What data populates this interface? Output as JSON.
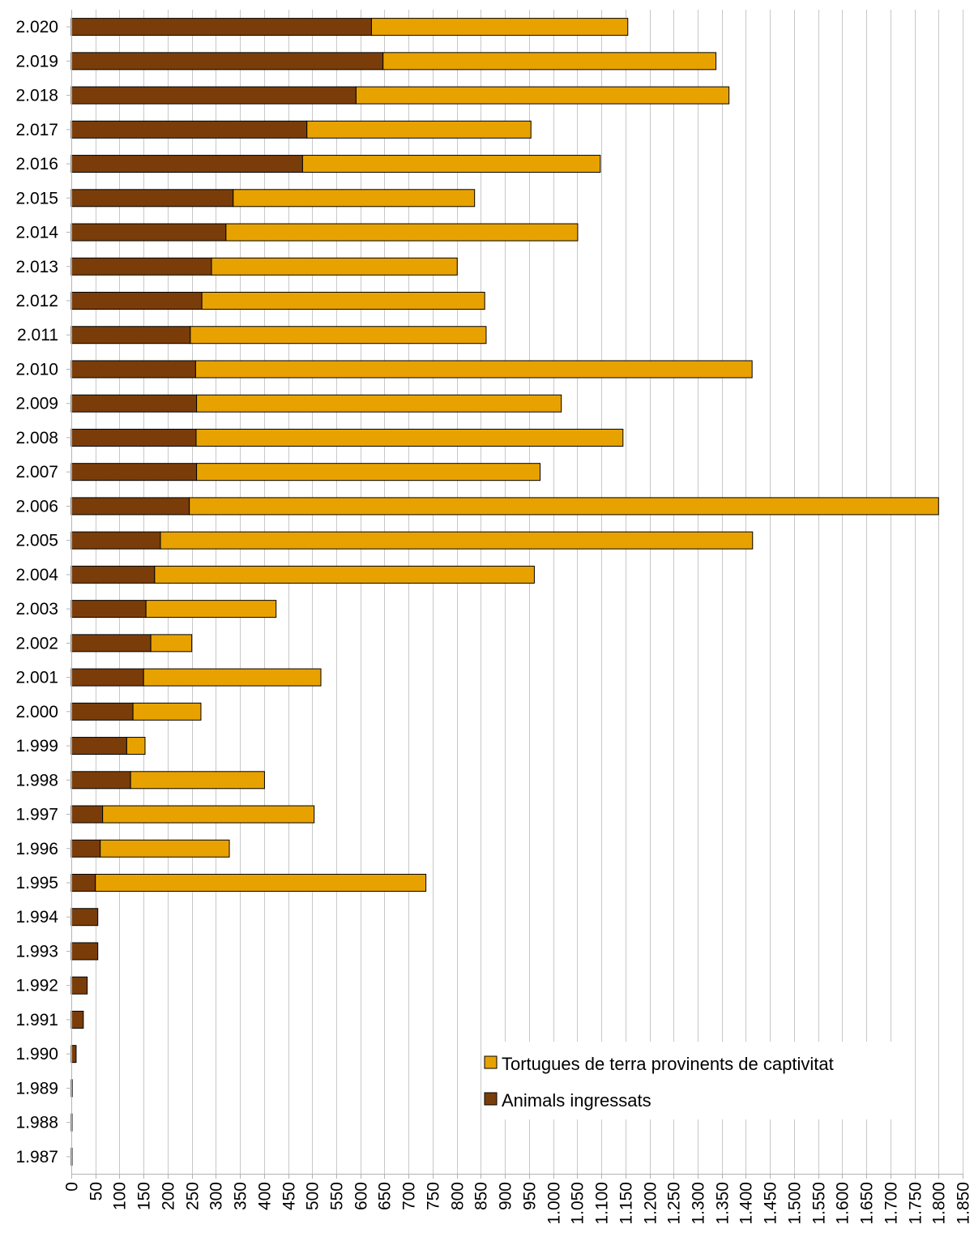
{
  "chart_data": {
    "type": "bar",
    "orientation": "horizontal",
    "stacked": true,
    "categories": [
      "1.987",
      "1.988",
      "1.989",
      "1.990",
      "1.991",
      "1.992",
      "1.993",
      "1.994",
      "1.995",
      "1.996",
      "1.997",
      "1.998",
      "1.999",
      "2.000",
      "2.001",
      "2.002",
      "2.003",
      "2.004",
      "2.005",
      "2.006",
      "2.007",
      "2.008",
      "2.009",
      "2.010",
      "2.011",
      "2.012",
      "2.013",
      "2.014",
      "2.015",
      "2.016",
      "2.017",
      "2.018",
      "2.019",
      "2.020"
    ],
    "series": [
      {
        "name": "Animals ingressats",
        "color": "#7a3d0a",
        "values": [
          1,
          1,
          2,
          10,
          25,
          33,
          55,
          55,
          50,
          60,
          65,
          123,
          115,
          128,
          150,
          165,
          155,
          173,
          185,
          245,
          260,
          259,
          260,
          258,
          247,
          271,
          291,
          321,
          336,
          480,
          489,
          591,
          647,
          623
        ]
      },
      {
        "name": "Tortugues de terra provinents de captivitat",
        "color": "#e8a200",
        "values": [
          0,
          0,
          0,
          0,
          0,
          0,
          0,
          0,
          686,
          268,
          439,
          278,
          38,
          141,
          368,
          85,
          270,
          788,
          1229,
          1555,
          713,
          886,
          757,
          1155,
          614,
          587,
          510,
          730,
          501,
          618,
          465,
          774,
          691,
          532
        ]
      }
    ],
    "xlim": [
      0,
      1850
    ],
    "x_tick_step": 50,
    "x_tick_labels": [
      "0",
      "50",
      "100",
      "150",
      "200",
      "250",
      "300",
      "350",
      "400",
      "450",
      "500",
      "550",
      "600",
      "650",
      "700",
      "750",
      "800",
      "850",
      "900",
      "950",
      "1.000",
      "1.050",
      "1.100",
      "1.150",
      "1.200",
      "1.250",
      "1.300",
      "1.350",
      "1.400",
      "1.450",
      "1.500",
      "1.550",
      "1.600",
      "1.650",
      "1.700",
      "1.750",
      "1.800",
      "1.850"
    ],
    "grid": "vertical",
    "legend_position": "bottom-right",
    "legend": [
      {
        "label": "Tortugues de terra provinents de captivitat",
        "color": "#e8a200"
      },
      {
        "label": "Animals ingressats",
        "color": "#7a3d0a"
      }
    ],
    "title": "",
    "xlabel": "",
    "ylabel": ""
  }
}
